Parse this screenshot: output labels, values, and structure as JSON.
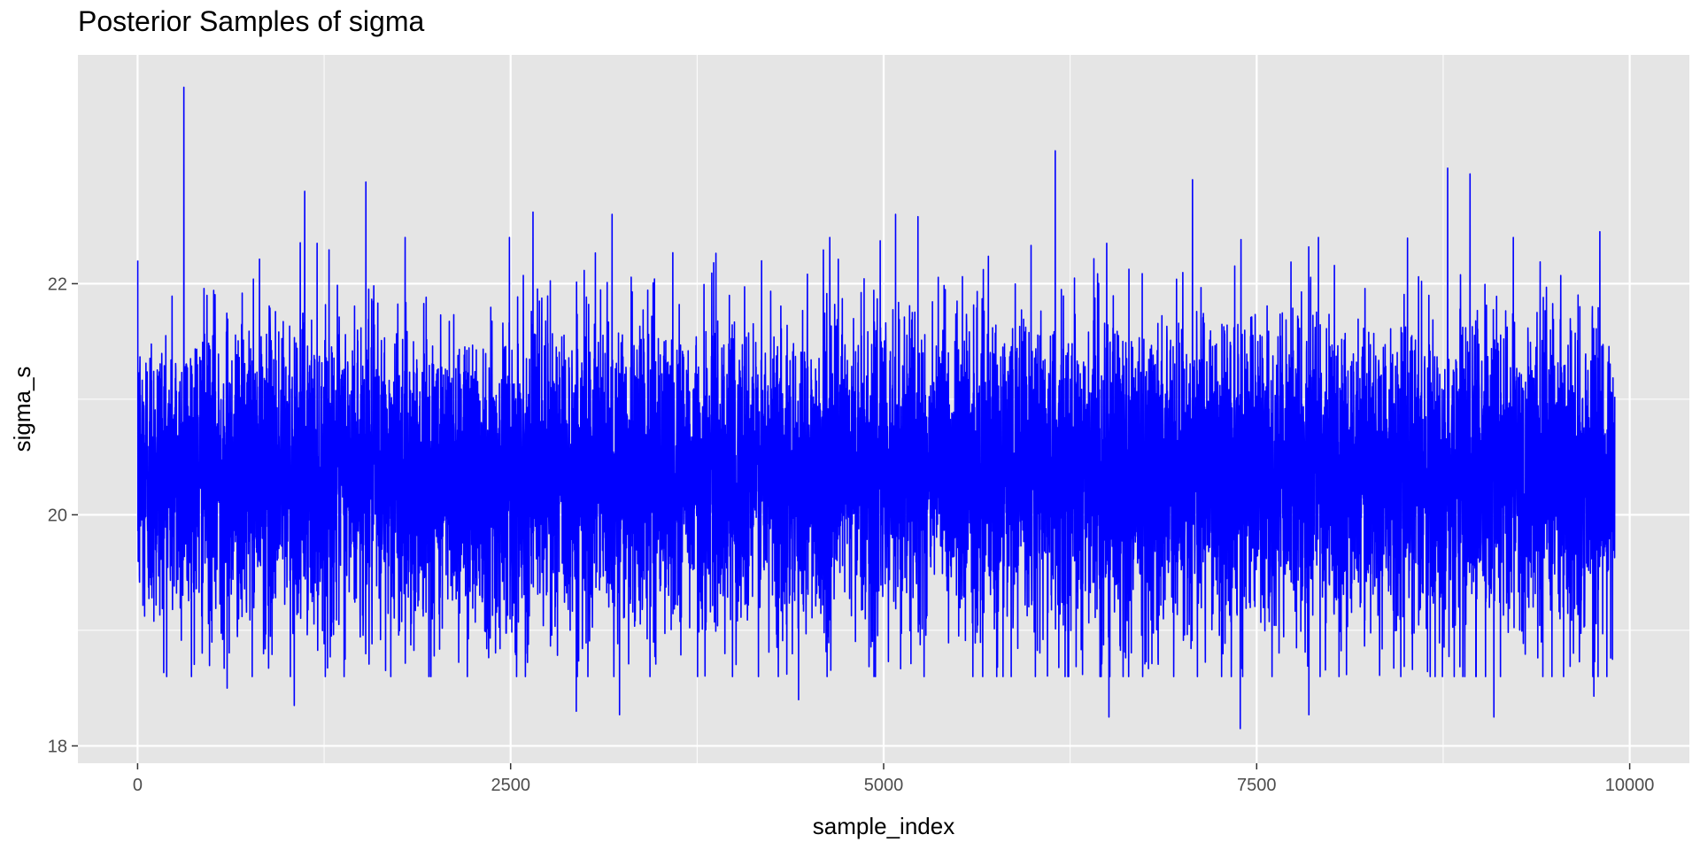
{
  "chart_data": {
    "type": "line",
    "title": "Posterior Samples of sigma",
    "xlabel": "sample_index",
    "ylabel": "sigma_s",
    "xlim": [
      -400,
      10400
    ],
    "ylim": [
      17.85,
      23.98
    ],
    "x_ticks": [
      0,
      2500,
      5000,
      7500,
      10000
    ],
    "x_tick_labels": [
      "0",
      "2500",
      "5000",
      "7500",
      "10000"
    ],
    "y_ticks": [
      18,
      20,
      22
    ],
    "y_tick_labels": [
      "18",
      "20",
      "22"
    ],
    "grid": true,
    "background": "#e5e5e5",
    "grid_color": "#ffffff",
    "series": [
      {
        "color": "#0000ff",
        "n_samples": 9900,
        "x_start": 1,
        "typical_range": [
          19.4,
          21.4
        ],
        "center": 20.35,
        "notable_points": [
          {
            "x": 310,
            "y": 23.7
          },
          {
            "x": 6150,
            "y": 23.15
          },
          {
            "x": 8780,
            "y": 23.0
          },
          {
            "x": 8930,
            "y": 22.95
          },
          {
            "x": 7070,
            "y": 22.9
          },
          {
            "x": 1530,
            "y": 22.88
          },
          {
            "x": 1120,
            "y": 22.8
          },
          {
            "x": 2650,
            "y": 22.62
          },
          {
            "x": 3180,
            "y": 22.6
          },
          {
            "x": 5080,
            "y": 22.6
          },
          {
            "x": 5230,
            "y": 22.58
          },
          {
            "x": 9800,
            "y": 22.45
          },
          {
            "x": 1050,
            "y": 18.35
          },
          {
            "x": 2940,
            "y": 18.3
          },
          {
            "x": 3230,
            "y": 18.27
          },
          {
            "x": 4430,
            "y": 18.4
          },
          {
            "x": 6510,
            "y": 18.25
          },
          {
            "x": 7390,
            "y": 18.15
          },
          {
            "x": 7850,
            "y": 18.27
          },
          {
            "x": 9090,
            "y": 18.25
          },
          {
            "x": 9760,
            "y": 18.43
          },
          {
            "x": 600,
            "y": 18.5
          }
        ]
      }
    ]
  }
}
